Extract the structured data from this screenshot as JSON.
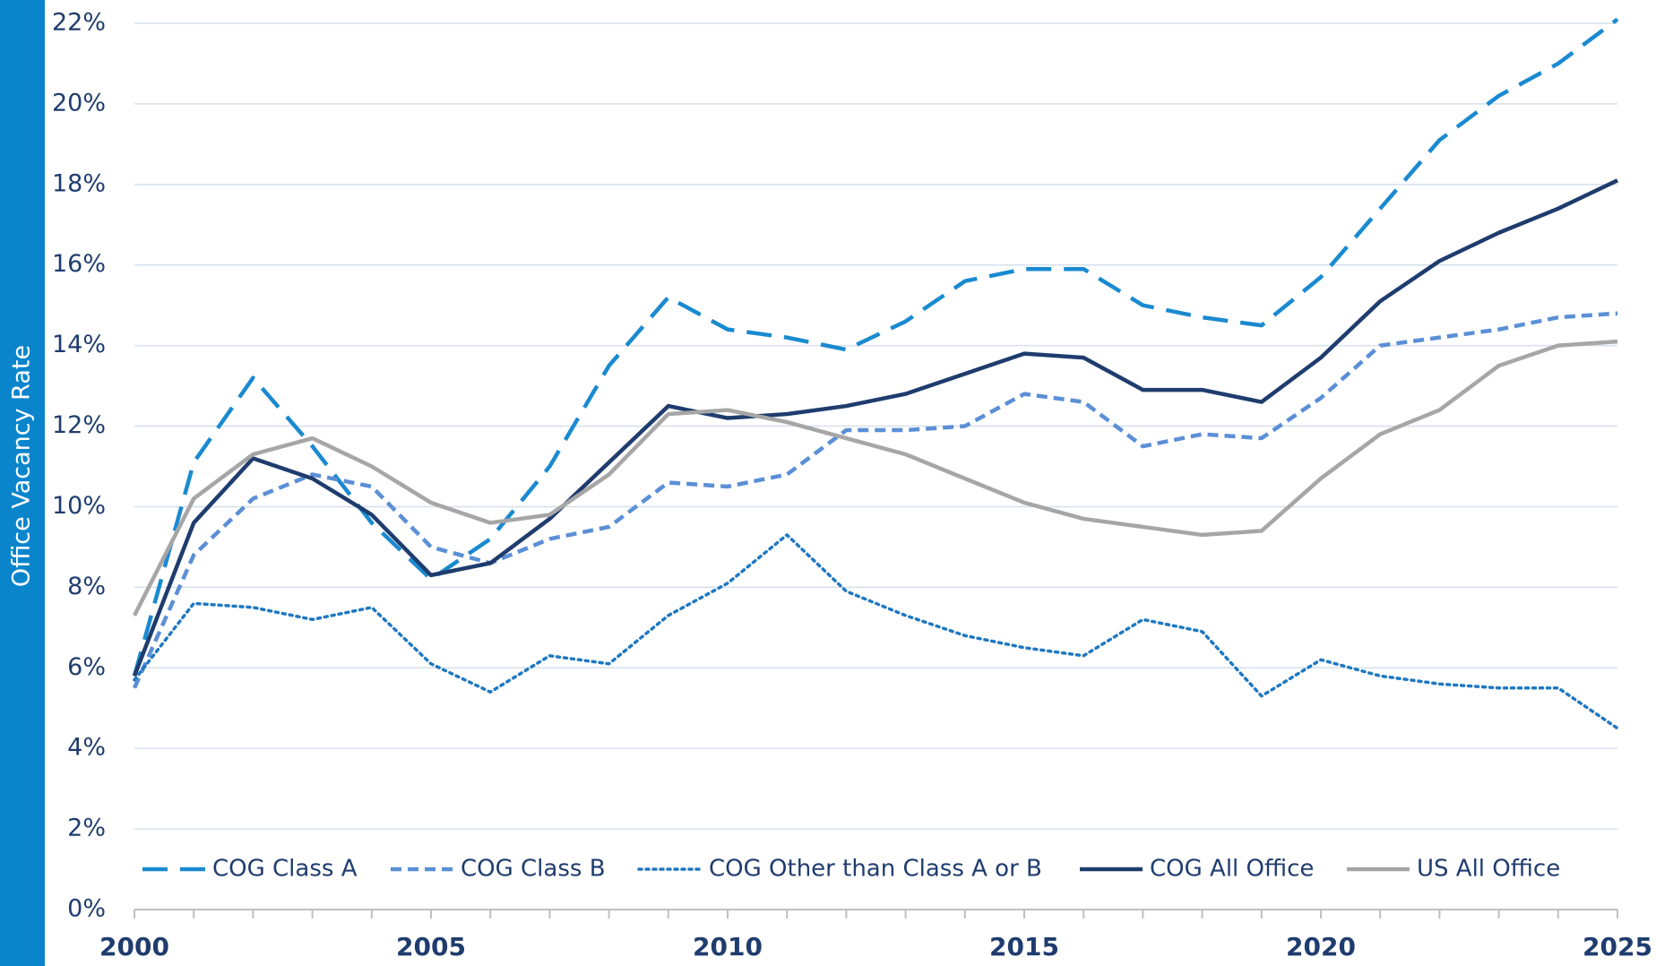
{
  "chart_data": {
    "type": "line",
    "y_label": "Office Vacancy Rate",
    "x": [
      2000,
      2001,
      2002,
      2003,
      2004,
      2005,
      2006,
      2007,
      2008,
      2009,
      2010,
      2011,
      2012,
      2013,
      2014,
      2015,
      2016,
      2017,
      2018,
      2019,
      2020,
      2021,
      2022,
      2023,
      2024,
      2025
    ],
    "series": [
      {
        "name": "COG Class A",
        "color": "#1a8ad0",
        "line_style": "long-dash",
        "values": [
          5.8,
          11.1,
          13.2,
          11.5,
          9.6,
          8.2,
          9.2,
          11.0,
          13.5,
          15.2,
          14.4,
          14.2,
          13.9,
          14.6,
          15.6,
          15.9,
          15.9,
          15.0,
          14.7,
          14.5,
          15.7,
          17.4,
          19.1,
          20.2,
          21.0,
          22.1
        ]
      },
      {
        "name": "COG Class B",
        "color": "#5b8fd6",
        "line_style": "dash",
        "values": [
          5.5,
          8.8,
          10.2,
          10.8,
          10.5,
          9.0,
          8.6,
          9.2,
          9.5,
          10.6,
          10.5,
          10.8,
          11.9,
          11.9,
          12.0,
          12.8,
          12.6,
          11.5,
          11.8,
          11.7,
          12.7,
          14.0,
          14.2,
          14.4,
          14.7,
          14.8
        ]
      },
      {
        "name": "COG Other than Class A or B",
        "color": "#1f78c1",
        "line_style": "dot",
        "values": [
          5.7,
          7.6,
          7.5,
          7.2,
          7.5,
          6.1,
          5.4,
          6.3,
          6.1,
          7.3,
          8.1,
          9.3,
          7.9,
          7.3,
          6.8,
          6.5,
          6.3,
          7.2,
          6.9,
          5.3,
          6.2,
          5.8,
          5.6,
          5.5,
          5.5,
          4.5
        ]
      },
      {
        "name": "COG All Office",
        "color": "#1f3c6e",
        "line_style": "solid",
        "values": [
          5.8,
          9.6,
          11.2,
          10.7,
          9.8,
          8.3,
          8.6,
          9.7,
          11.1,
          12.5,
          12.2,
          12.3,
          12.5,
          12.8,
          13.3,
          13.8,
          13.7,
          12.9,
          12.9,
          12.6,
          13.7,
          15.1,
          16.1,
          16.8,
          17.4,
          18.1
        ]
      },
      {
        "name": "US All Office",
        "color": "#a6a6a6",
        "line_style": "solid",
        "values": [
          7.3,
          10.2,
          11.3,
          11.7,
          11.0,
          10.1,
          9.6,
          9.8,
          10.8,
          12.3,
          12.4,
          12.1,
          11.7,
          11.3,
          10.7,
          10.1,
          9.7,
          9.5,
          9.3,
          9.4,
          10.7,
          11.8,
          12.4,
          13.5,
          14.0,
          14.1
        ]
      }
    ],
    "xlim": [
      2000,
      2025
    ],
    "xticks": [
      2000,
      2005,
      2010,
      2015,
      2020,
      2025
    ],
    "ylim": [
      0,
      22
    ],
    "yticks": [
      {
        "value": 0,
        "label": "0%"
      },
      {
        "value": 2,
        "label": "2%"
      },
      {
        "value": 4,
        "label": "4%"
      },
      {
        "value": 6,
        "label": "6%"
      },
      {
        "value": 8,
        "label": "8%"
      },
      {
        "value": 10,
        "label": "10%"
      },
      {
        "value": 12,
        "label": "12%"
      },
      {
        "value": 14,
        "label": "14%"
      },
      {
        "value": 16,
        "label": "16%"
      },
      {
        "value": 18,
        "label": "18%"
      },
      {
        "value": 20,
        "label": "20%"
      },
      {
        "value": 22,
        "label": "22%"
      }
    ],
    "grid": true,
    "legend": "bottom"
  }
}
